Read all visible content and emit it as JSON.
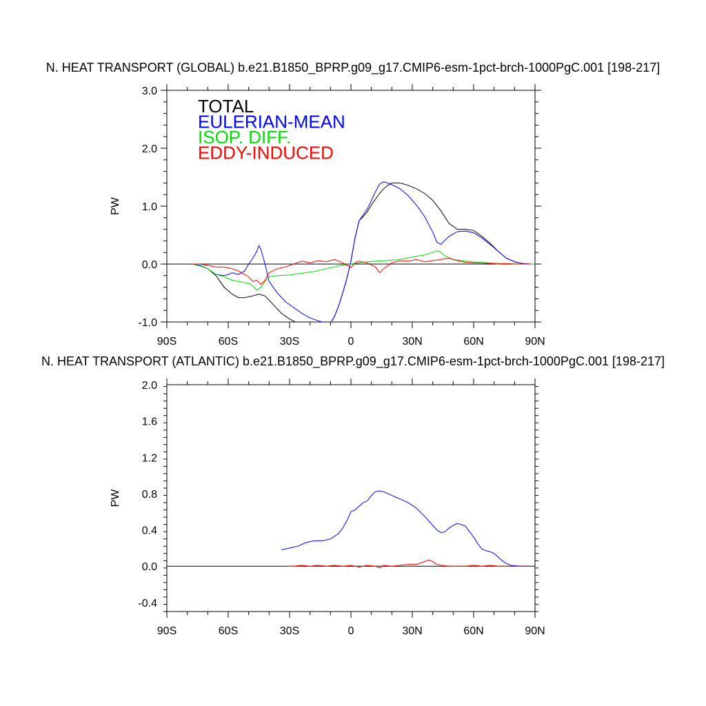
{
  "chart_data": [
    {
      "type": "line",
      "title": "N. HEAT TRANSPORT (GLOBAL) b.e21.B1850_BPRP.g09_g17.CMIP6-esm-1pct-brch-1000PgC.001 [198-217]",
      "ylabel": "PW",
      "xlim": [
        -90,
        90
      ],
      "ylim": [
        -1.0,
        3.0
      ],
      "x_ticks": [
        -90,
        -60,
        -30,
        0,
        30,
        60,
        90
      ],
      "x_tick_labels": [
        "90S",
        "60S",
        "30S",
        "0",
        "30N",
        "60N",
        "90N"
      ],
      "y_ticks": [
        -1.0,
        0.0,
        1.0,
        2.0,
        3.0
      ],
      "y_tick_labels": [
        "-1.0",
        "0.0",
        "1.0",
        "2.0",
        "3.0"
      ],
      "legend_position": "top-left",
      "series": [
        {
          "name": "TOTAL",
          "color": "#000000",
          "x": [
            -78,
            -74,
            -70,
            -66,
            -62,
            -58,
            -55,
            -52,
            -48,
            -45,
            -42,
            -38,
            -34,
            -30,
            -26,
            -22,
            -18,
            -14,
            -10,
            -8,
            -6,
            -4,
            -2,
            0,
            2,
            4,
            6,
            8,
            10,
            12,
            14,
            16,
            18,
            20,
            24,
            28,
            32,
            36,
            40,
            44,
            48,
            52,
            56,
            60,
            64,
            68,
            72,
            76,
            80,
            84,
            88
          ],
          "y": [
            0,
            -0.02,
            -0.08,
            -0.2,
            -0.4,
            -0.52,
            -0.58,
            -0.58,
            -0.55,
            -0.52,
            -0.55,
            -0.7,
            -0.85,
            -0.95,
            -1.02,
            -1.08,
            -1.12,
            -1.1,
            -1.02,
            -0.9,
            -0.72,
            -0.5,
            -0.25,
            0.05,
            0.45,
            0.75,
            0.82,
            0.9,
            1.02,
            1.12,
            1.22,
            1.3,
            1.36,
            1.4,
            1.4,
            1.36,
            1.3,
            1.22,
            1.1,
            0.92,
            0.7,
            0.6,
            0.6,
            0.58,
            0.48,
            0.36,
            0.22,
            0.1,
            0.04,
            0.01,
            0
          ]
        },
        {
          "name": "EULERIAN-MEAN",
          "color": "#0000ff",
          "x": [
            -78,
            -74,
            -70,
            -66,
            -62,
            -60,
            -58,
            -55,
            -52,
            -50,
            -48,
            -46,
            -45,
            -44,
            -42,
            -40,
            -36,
            -32,
            -28,
            -24,
            -20,
            -16,
            -12,
            -10,
            -8,
            -6,
            -4,
            -2,
            0,
            2,
            4,
            6,
            8,
            10,
            12,
            14,
            16,
            18,
            20,
            24,
            28,
            32,
            36,
            40,
            42,
            44,
            48,
            52,
            56,
            60,
            64,
            68,
            72,
            76,
            80,
            84,
            88
          ],
          "y": [
            0,
            -0.02,
            -0.08,
            -0.18,
            -0.2,
            -0.18,
            -0.15,
            -0.18,
            -0.12,
            0,
            0.1,
            0.22,
            0.32,
            0.25,
            0,
            -0.3,
            -0.5,
            -0.65,
            -0.75,
            -0.85,
            -0.93,
            -0.98,
            -1.02,
            -1.02,
            -0.9,
            -0.72,
            -0.5,
            -0.25,
            0.05,
            0.45,
            0.75,
            0.85,
            0.95,
            1.1,
            1.25,
            1.38,
            1.42,
            1.4,
            1.37,
            1.3,
            1.18,
            1.02,
            0.82,
            0.55,
            0.38,
            0.34,
            0.48,
            0.56,
            0.57,
            0.54,
            0.45,
            0.34,
            0.22,
            0.1,
            0.04,
            0.01,
            0
          ]
        },
        {
          "name": "ISOP. DIFF.",
          "color": "#00dd00",
          "x": [
            -78,
            -74,
            -70,
            -66,
            -62,
            -58,
            -55,
            -52,
            -50,
            -48,
            -46,
            -44,
            -42,
            -40,
            -36,
            -30,
            -24,
            -18,
            -12,
            -6,
            0,
            6,
            12,
            18,
            24,
            30,
            36,
            40,
            42,
            44,
            46,
            50,
            56,
            62,
            68,
            74,
            80,
            86,
            90
          ],
          "y": [
            0,
            -0.03,
            -0.08,
            -0.18,
            -0.22,
            -0.28,
            -0.3,
            -0.32,
            -0.33,
            -0.38,
            -0.45,
            -0.4,
            -0.3,
            -0.22,
            -0.2,
            -0.19,
            -0.16,
            -0.13,
            -0.08,
            -0.03,
            0,
            0.03,
            0.05,
            0.06,
            0.08,
            0.12,
            0.16,
            0.2,
            0.23,
            0.2,
            0.14,
            0.08,
            0.05,
            0.03,
            0.02,
            0.01,
            0.005,
            0,
            0
          ]
        },
        {
          "name": "EDDY-INDUCED",
          "color": "#ff0000",
          "x": [
            -78,
            -74,
            -70,
            -66,
            -62,
            -58,
            -55,
            -52,
            -50,
            -48,
            -46,
            -44,
            -42,
            -40,
            -36,
            -32,
            -28,
            -24,
            -20,
            -16,
            -12,
            -8,
            -4,
            -2,
            0,
            2,
            4,
            8,
            12,
            14,
            16,
            20,
            24,
            28,
            32,
            36,
            40,
            44,
            48,
            52,
            56,
            60,
            64,
            68,
            72,
            76,
            80,
            84,
            88
          ],
          "y": [
            0,
            0,
            -0.02,
            -0.05,
            -0.05,
            -0.08,
            -0.12,
            -0.18,
            -0.22,
            -0.3,
            -0.28,
            -0.35,
            -0.28,
            -0.15,
            -0.08,
            -0.05,
            0,
            0.05,
            0.02,
            0.06,
            0.04,
            0.08,
            0.02,
            -0.02,
            -0.06,
            0.02,
            0.05,
            0.02,
            -0.05,
            -0.15,
            -0.08,
            0.02,
            0.06,
            0.05,
            0.08,
            0.04,
            0.06,
            0.08,
            0.1,
            0.06,
            0.03,
            0.02,
            0.02,
            0.01,
            0,
            0.01,
            0,
            0,
            0
          ]
        }
      ]
    },
    {
      "type": "line",
      "title": "N. HEAT TRANSPORT (ATLANTIC) b.e21.B1850_BPRP.g09_g17.CMIP6-esm-1pct-brch-1000PgC.001 [198-217]",
      "ylabel": "PW",
      "xlim": [
        -90,
        90
      ],
      "ylim": [
        -0.5,
        2.0
      ],
      "x_ticks": [
        -90,
        -60,
        -30,
        0,
        30,
        60,
        90
      ],
      "x_tick_labels": [
        "90S",
        "60S",
        "30S",
        "0",
        "30N",
        "60N",
        "90N"
      ],
      "y_ticks": [
        -0.4,
        0.0,
        0.4,
        0.8,
        1.2,
        1.6,
        2.0
      ],
      "y_tick_labels": [
        "-0.4",
        "0.0",
        "0.4",
        "0.8",
        "1.2",
        "1.6",
        "2.0"
      ],
      "series": [
        {
          "name": "EULERIAN-MEAN",
          "color": "#0000ff",
          "x": [
            -34,
            -30,
            -26,
            -22,
            -18,
            -14,
            -10,
            -6,
            -4,
            -2,
            0,
            2,
            4,
            6,
            8,
            10,
            12,
            14,
            16,
            18,
            20,
            24,
            28,
            32,
            36,
            40,
            42,
            44,
            46,
            48,
            50,
            52,
            54,
            56,
            58,
            60,
            62,
            64,
            66,
            68,
            70,
            72,
            74,
            76,
            78,
            80,
            84,
            88
          ],
          "y": [
            0.18,
            0.2,
            0.22,
            0.26,
            0.28,
            0.28,
            0.3,
            0.36,
            0.42,
            0.5,
            0.6,
            0.62,
            0.66,
            0.7,
            0.72,
            0.78,
            0.82,
            0.83,
            0.82,
            0.8,
            0.78,
            0.74,
            0.7,
            0.64,
            0.55,
            0.45,
            0.4,
            0.37,
            0.38,
            0.42,
            0.45,
            0.47,
            0.46,
            0.44,
            0.38,
            0.32,
            0.25,
            0.19,
            0.17,
            0.16,
            0.14,
            0.1,
            0.06,
            0.03,
            0.01,
            0.005,
            0,
            0
          ]
        },
        {
          "name": "EDDY-INDUCED",
          "color": "#ff0000",
          "x": [
            -32,
            -28,
            -24,
            -20,
            -16,
            -12,
            -8,
            -4,
            0,
            4,
            8,
            12,
            14,
            16,
            20,
            24,
            28,
            32,
            36,
            38,
            40,
            42,
            44,
            48,
            52,
            56,
            60,
            64,
            68,
            72,
            76,
            80,
            84,
            88
          ],
          "y": [
            0,
            0,
            0.01,
            0,
            0.01,
            0,
            0.01,
            0,
            0.01,
            -0.01,
            0.01,
            0,
            -0.02,
            0.01,
            0,
            0.01,
            0.02,
            0.02,
            0.05,
            0.07,
            0.05,
            0.02,
            0.01,
            0,
            0,
            0,
            0.01,
            0,
            0.01,
            0,
            0,
            0,
            0,
            0
          ]
        }
      ]
    }
  ]
}
